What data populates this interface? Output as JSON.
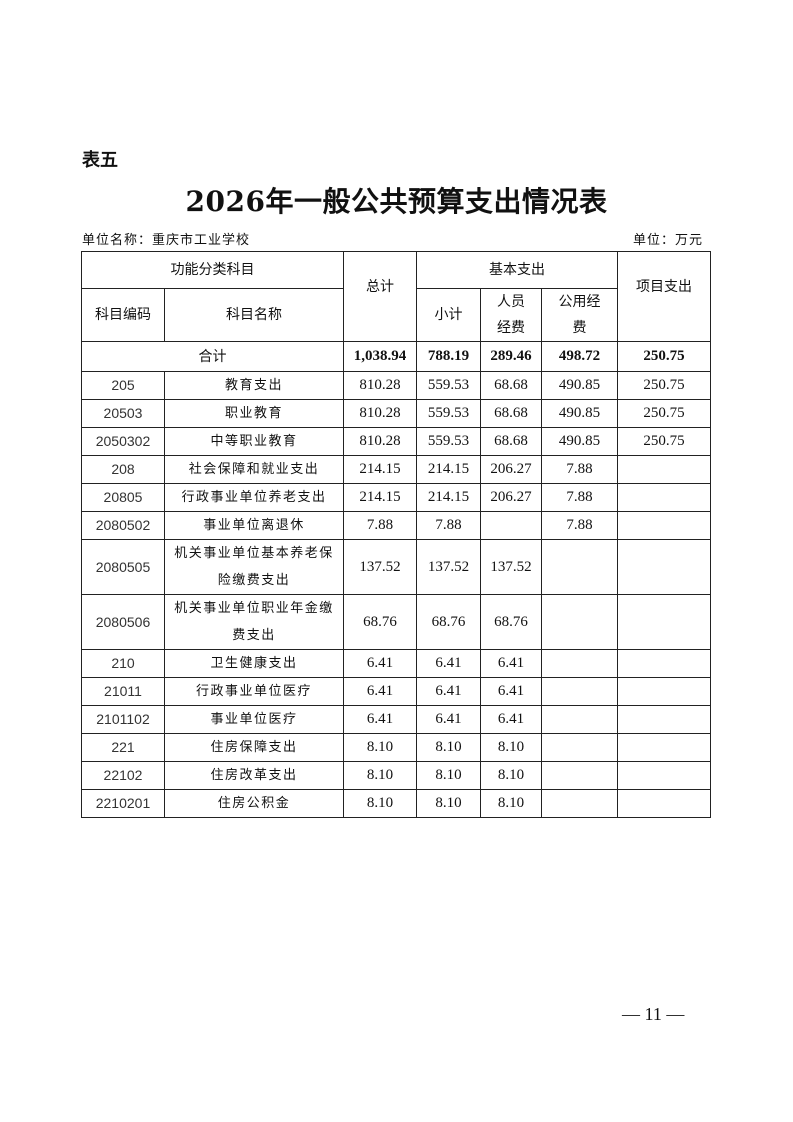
{
  "table_label": "表五",
  "title": "2026年一般公共预算支出情况表",
  "unit_name": "单位名称：重庆市工业学校",
  "unit": "单位：万元",
  "headers": {
    "func_class": "功能分类科目",
    "total": "总计",
    "basic": "基本支出",
    "project": "项目支出",
    "code": "科目编码",
    "name": "科目名称",
    "subtotal": "小计",
    "personnel": "人员经费",
    "public": "公用经费"
  },
  "total_row": {
    "label": "合计",
    "total": "1,038.94",
    "subtotal": "788.19",
    "personnel": "289.46",
    "public": "498.72",
    "project": "250.75"
  },
  "rows": [
    {
      "code": "205",
      "name": "教育支出",
      "total": "810.28",
      "subtotal": "559.53",
      "personnel": "68.68",
      "public": "490.85",
      "project": "250.75"
    },
    {
      "code": "20503",
      "name": "职业教育",
      "total": "810.28",
      "subtotal": "559.53",
      "personnel": "68.68",
      "public": "490.85",
      "project": "250.75"
    },
    {
      "code": "2050302",
      "name": "中等职业教育",
      "total": "810.28",
      "subtotal": "559.53",
      "personnel": "68.68",
      "public": "490.85",
      "project": "250.75"
    },
    {
      "code": "208",
      "name": "社会保障和就业支出",
      "total": "214.15",
      "subtotal": "214.15",
      "personnel": "206.27",
      "public": "7.88",
      "project": ""
    },
    {
      "code": "20805",
      "name": "行政事业单位养老支出",
      "total": "214.15",
      "subtotal": "214.15",
      "personnel": "206.27",
      "public": "7.88",
      "project": ""
    },
    {
      "code": "2080502",
      "name": "事业单位离退休",
      "total": "7.88",
      "subtotal": "7.88",
      "personnel": "",
      "public": "7.88",
      "project": ""
    },
    {
      "code": "2080505",
      "name": "机关事业单位基本养老保险缴费支出",
      "total": "137.52",
      "subtotal": "137.52",
      "personnel": "137.52",
      "public": "",
      "project": ""
    },
    {
      "code": "2080506",
      "name": "机关事业单位职业年金缴费支出",
      "total": "68.76",
      "subtotal": "68.76",
      "personnel": "68.76",
      "public": "",
      "project": ""
    },
    {
      "code": "210",
      "name": "卫生健康支出",
      "total": "6.41",
      "subtotal": "6.41",
      "personnel": "6.41",
      "public": "",
      "project": ""
    },
    {
      "code": "21011",
      "name": "行政事业单位医疗",
      "total": "6.41",
      "subtotal": "6.41",
      "personnel": "6.41",
      "public": "",
      "project": ""
    },
    {
      "code": "2101102",
      "name": "事业单位医疗",
      "total": "6.41",
      "subtotal": "6.41",
      "personnel": "6.41",
      "public": "",
      "project": ""
    },
    {
      "code": "221",
      "name": "住房保障支出",
      "total": "8.10",
      "subtotal": "8.10",
      "personnel": "8.10",
      "public": "",
      "project": ""
    },
    {
      "code": "22102",
      "name": "住房改革支出",
      "total": "8.10",
      "subtotal": "8.10",
      "personnel": "8.10",
      "public": "",
      "project": ""
    },
    {
      "code": "2210201",
      "name": "住房公积金",
      "total": "8.10",
      "subtotal": "8.10",
      "personnel": "8.10",
      "public": "",
      "project": ""
    }
  ],
  "page_number": "— 11 —"
}
